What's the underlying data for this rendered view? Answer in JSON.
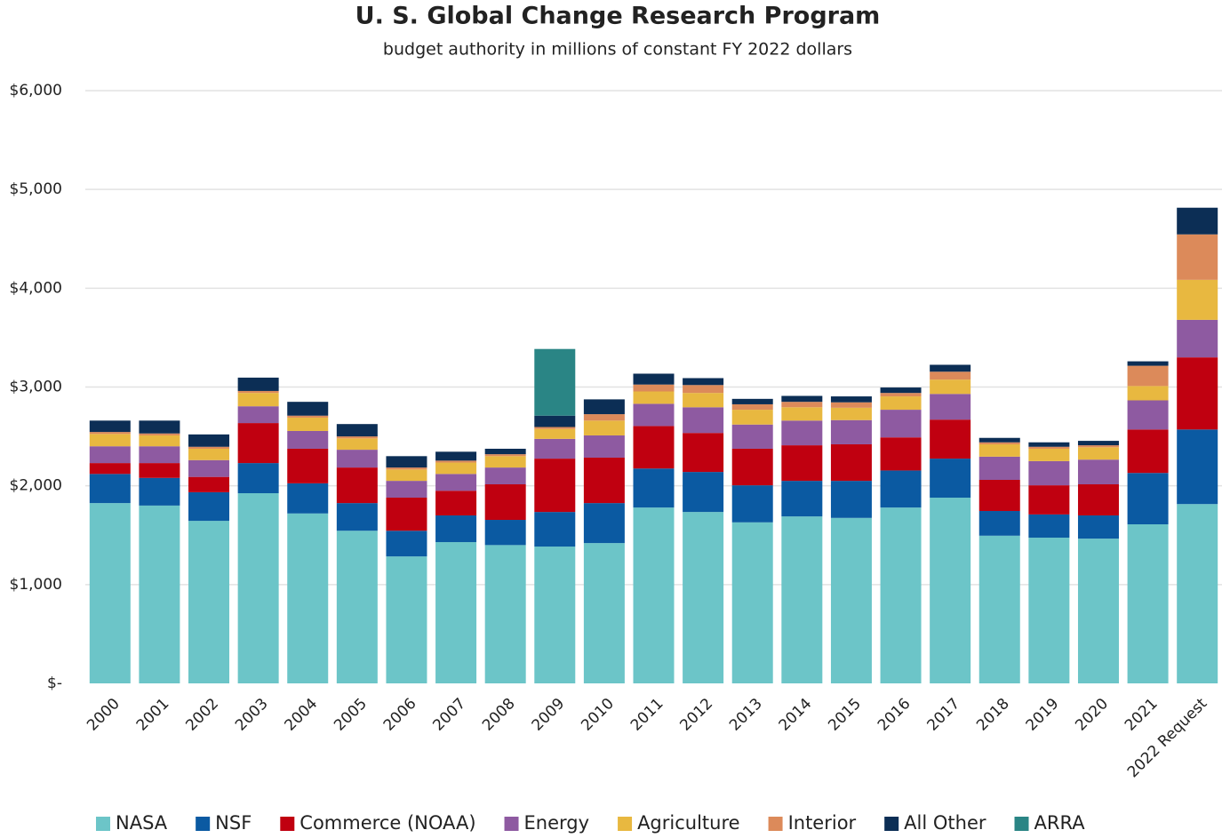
{
  "chart_data": {
    "type": "stacked_bar",
    "title": "U. S. Global Change Research Program",
    "subtitle": "budget authority in millions of constant FY 2022 dollars",
    "categories": [
      "2000",
      "2001",
      "2002",
      "2003",
      "2004",
      "2005",
      "2006",
      "2007",
      "2008",
      "2009",
      "2010",
      "2011",
      "2012",
      "2013",
      "2014",
      "2015",
      "2016",
      "2017",
      "2018",
      "2019",
      "2020",
      "2021",
      "2022 Request"
    ],
    "series": [
      {
        "name": "NASA",
        "color": "#6cc5c8",
        "values": [
          1825,
          1800,
          1645,
          1925,
          1720,
          1545,
          1285,
          1430,
          1400,
          1385,
          1420,
          1780,
          1735,
          1630,
          1690,
          1675,
          1780,
          1880,
          1495,
          1475,
          1465,
          1610,
          1815
        ]
      },
      {
        "name": "NSF",
        "color": "#0b5aa2",
        "values": [
          295,
          280,
          290,
          305,
          305,
          280,
          260,
          270,
          255,
          350,
          405,
          395,
          405,
          375,
          360,
          375,
          375,
          395,
          250,
          235,
          235,
          520,
          755
        ]
      },
      {
        "name": "Commerce (NOAA)",
        "color": "#c00010",
        "values": [
          110,
          150,
          155,
          405,
          350,
          360,
          335,
          250,
          360,
          540,
          460,
          430,
          395,
          370,
          360,
          370,
          335,
          395,
          315,
          295,
          315,
          440,
          730
        ]
      },
      {
        "name": "Energy",
        "color": "#8e5aa1",
        "values": [
          170,
          170,
          170,
          170,
          180,
          180,
          170,
          170,
          170,
          200,
          225,
          225,
          260,
          245,
          250,
          245,
          280,
          260,
          235,
          245,
          250,
          295,
          380
        ]
      },
      {
        "name": "Agriculture",
        "color": "#e8b840",
        "values": [
          125,
          110,
          115,
          135,
          135,
          115,
          115,
          115,
          115,
          100,
          150,
          125,
          145,
          150,
          135,
          125,
          135,
          145,
          125,
          125,
          125,
          145,
          405
        ]
      },
      {
        "name": "Interior",
        "color": "#dc8a5a",
        "values": [
          20,
          20,
          20,
          20,
          20,
          20,
          20,
          20,
          20,
          20,
          65,
          70,
          80,
          55,
          55,
          55,
          35,
          80,
          20,
          20,
          20,
          205,
          460
        ]
      },
      {
        "name": "All Other",
        "color": "#0c2e55",
        "values": [
          115,
          130,
          125,
          135,
          140,
          125,
          115,
          90,
          55,
          115,
          150,
          110,
          70,
          55,
          60,
          60,
          55,
          70,
          45,
          45,
          45,
          45,
          270
        ]
      },
      {
        "name": "ARRA",
        "color": "#2a8585",
        "values": [
          0,
          0,
          0,
          0,
          0,
          0,
          0,
          0,
          0,
          675,
          0,
          0,
          0,
          0,
          0,
          0,
          0,
          0,
          0,
          0,
          0,
          0,
          0
        ]
      }
    ],
    "ylim": [
      0,
      6000
    ],
    "yticks": [
      {
        "value": 0,
        "label": "$-"
      },
      {
        "value": 1000,
        "label": "$1,000"
      },
      {
        "value": 2000,
        "label": "$2,000"
      },
      {
        "value": 3000,
        "label": "$3,000"
      },
      {
        "value": 4000,
        "label": "$4,000"
      },
      {
        "value": 5000,
        "label": "$5,000"
      },
      {
        "value": 6000,
        "label": "$6,000"
      }
    ],
    "grid": true,
    "legend": "bottom"
  }
}
